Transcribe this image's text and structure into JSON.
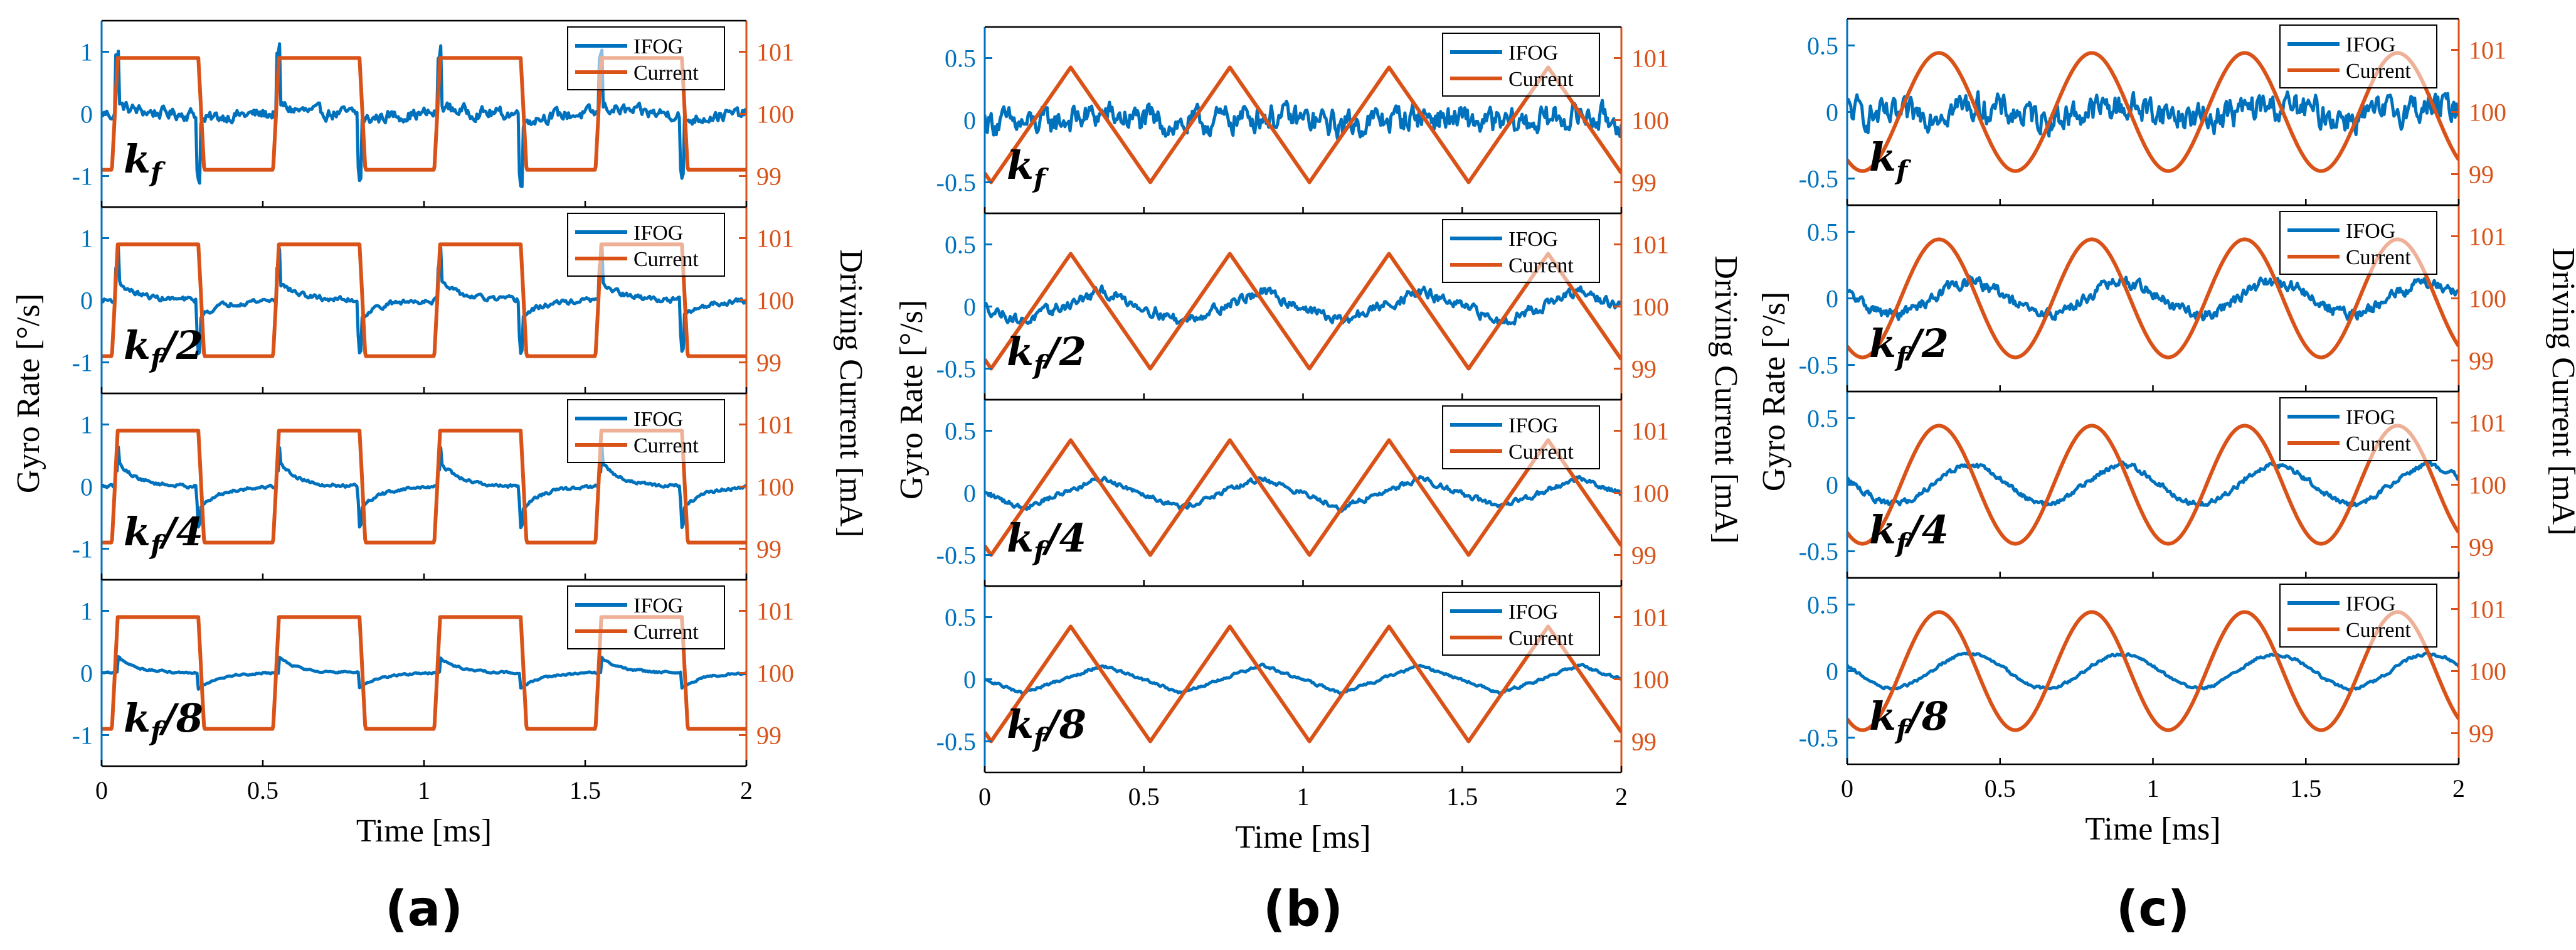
{
  "figure": {
    "colors": {
      "ifog": "#0072BD",
      "current": "#D95319",
      "axis": "#000000",
      "left_axis": "#0072BD",
      "right_axis": "#D95319"
    }
  },
  "chart_data": [
    {
      "type": "line",
      "panel_label": "(a)",
      "waveform": "square",
      "xlabel": "Time [ms]",
      "ylabel_left": "Gyro Rate [°/s]",
      "ylabel_right": "Driving Current [mA]",
      "xlim": [
        0,
        2
      ],
      "xticks": [
        0,
        0.5,
        1,
        1.5,
        2
      ],
      "xtick_labels": [
        "0",
        "0.5",
        "1",
        "1.5",
        "2"
      ],
      "ylim_left": [
        -1.5,
        1.5
      ],
      "yticks_left": [
        -1,
        0,
        1
      ],
      "ytick_labels_left": [
        "-1",
        "0",
        "1"
      ],
      "ylim_right": [
        98.5,
        101.5
      ],
      "yticks_right": [
        99,
        100,
        101
      ],
      "ytick_labels_right": [
        "99",
        "100",
        "101"
      ],
      "current": {
        "name": "Current",
        "period_ms": 0.5,
        "min_mA": 99.1,
        "max_mA": 100.9,
        "high_start_ms": 0.05,
        "high_end_ms": 0.3
      },
      "legend": [
        "IFOG",
        "Current"
      ],
      "rows": [
        {
          "label_base": "k",
          "label_sub": "f",
          "label_suffix": "",
          "ifog": {
            "name": "IFOG",
            "amplitude": 0.15,
            "noise": 0.18,
            "spike": 0.9
          }
        },
        {
          "label_base": "k",
          "label_sub": "f",
          "label_suffix": "/2",
          "ifog": {
            "name": "IFOG",
            "amplitude": 0.3,
            "noise": 0.08,
            "spike": 0.55
          }
        },
        {
          "label_base": "k",
          "label_sub": "f",
          "label_suffix": "/4",
          "ifog": {
            "name": "IFOG",
            "amplitude": 0.4,
            "noise": 0.05,
            "spike": 0.25
          }
        },
        {
          "label_base": "k",
          "label_sub": "f",
          "label_suffix": "/8",
          "ifog": {
            "name": "IFOG",
            "amplitude": 0.25,
            "noise": 0.03,
            "spike": 0.0
          }
        }
      ]
    },
    {
      "type": "line",
      "panel_label": "(b)",
      "waveform": "triangle",
      "xlabel": "Time [ms]",
      "ylabel_left": "Gyro Rate [°/s]",
      "ylabel_right": "Driving Current [mA]",
      "xlim": [
        0,
        2
      ],
      "xticks": [
        0,
        0.5,
        1,
        1.5,
        2
      ],
      "xtick_labels": [
        "0",
        "0.5",
        "1",
        "1.5",
        "2"
      ],
      "ylim_left": [
        -0.75,
        0.75
      ],
      "yticks_left": [
        -0.5,
        0,
        0.5
      ],
      "ytick_labels_left": [
        "-0.5",
        "0",
        "0.5"
      ],
      "ylim_right": [
        98.5,
        101.5
      ],
      "yticks_right": [
        99,
        100,
        101
      ],
      "ytick_labels_right": [
        "99",
        "100",
        "101"
      ],
      "current": {
        "name": "Current",
        "period_ms": 0.5,
        "min_mA": 99.0,
        "max_mA": 100.85,
        "peak_ms": 0.27
      },
      "legend": [
        "IFOG",
        "Current"
      ],
      "rows": [
        {
          "label_base": "k",
          "label_sub": "f",
          "label_suffix": "",
          "ifog": {
            "name": "IFOG",
            "amplitude": 0.05,
            "noise": 0.2,
            "spike": 0.0
          }
        },
        {
          "label_base": "k",
          "label_sub": "f",
          "label_suffix": "/2",
          "ifog": {
            "name": "IFOG",
            "amplitude": 0.15,
            "noise": 0.08,
            "spike": 0.0
          }
        },
        {
          "label_base": "k",
          "label_sub": "f",
          "label_suffix": "/4",
          "ifog": {
            "name": "IFOG",
            "amplitude": 0.15,
            "noise": 0.04,
            "spike": 0.0
          }
        },
        {
          "label_base": "k",
          "label_sub": "f",
          "label_suffix": "/8",
          "ifog": {
            "name": "IFOG",
            "amplitude": 0.14,
            "noise": 0.02,
            "spike": 0.0
          }
        }
      ]
    },
    {
      "type": "line",
      "panel_label": "(c)",
      "waveform": "sine",
      "xlabel": "Time [ms]",
      "ylabel_left": "Gyro Rate [°/s]",
      "ylabel_right": "Driving Current [mA]",
      "xlim": [
        0,
        2
      ],
      "xticks": [
        0,
        0.5,
        1,
        1.5,
        2
      ],
      "xtick_labels": [
        "0",
        "0.5",
        "1",
        "1.5",
        "2"
      ],
      "ylim_left": [
        -0.7,
        0.7
      ],
      "yticks_left": [
        -0.5,
        0,
        0.5
      ],
      "ytick_labels_left": [
        "-0.5",
        "0",
        "0.5"
      ],
      "ylim_right": [
        98.5,
        101.5
      ],
      "yticks_right": [
        99,
        100,
        101
      ],
      "ytick_labels_right": [
        "99",
        "100",
        "101"
      ],
      "current": {
        "name": "Current",
        "period_ms": 0.5,
        "min_mA": 99.05,
        "max_mA": 100.95,
        "peak_ms": 0.3
      },
      "legend": [
        "IFOG",
        "Current"
      ],
      "rows": [
        {
          "label_base": "k",
          "label_sub": "f",
          "label_suffix": "",
          "ifog": {
            "name": "IFOG",
            "amplitude": 0.05,
            "noise": 0.2,
            "spike": 0.0
          }
        },
        {
          "label_base": "k",
          "label_sub": "f",
          "label_suffix": "/2",
          "ifog": {
            "name": "IFOG",
            "amplitude": 0.15,
            "noise": 0.08,
            "spike": 0.0
          }
        },
        {
          "label_base": "k",
          "label_sub": "f",
          "label_suffix": "/4",
          "ifog": {
            "name": "IFOG",
            "amplitude": 0.18,
            "noise": 0.04,
            "spike": 0.0
          }
        },
        {
          "label_base": "k",
          "label_sub": "f",
          "label_suffix": "/8",
          "ifog": {
            "name": "IFOG",
            "amplitude": 0.16,
            "noise": 0.02,
            "spike": 0.0
          }
        }
      ]
    }
  ]
}
